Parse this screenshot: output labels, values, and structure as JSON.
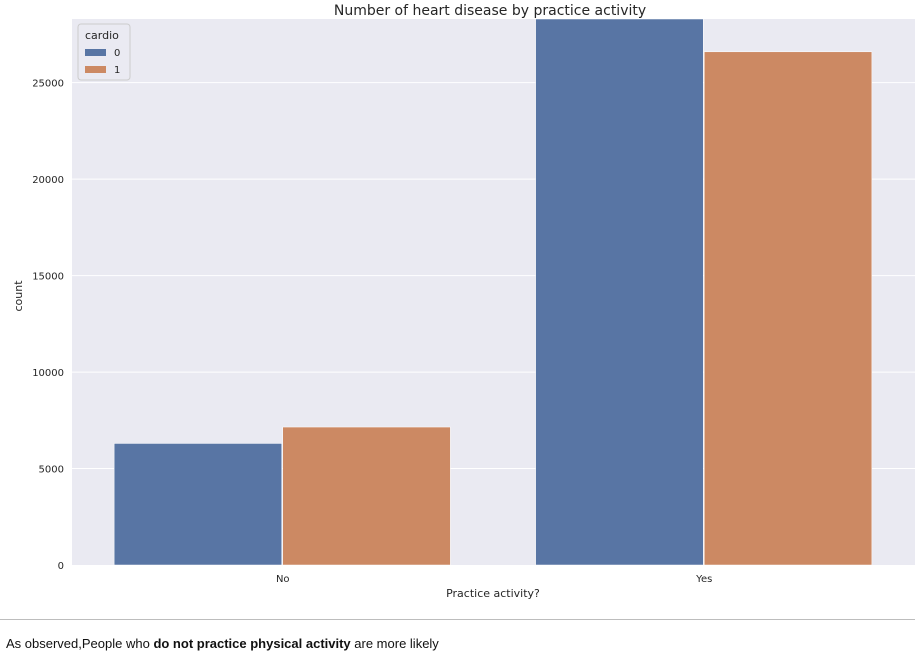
{
  "chart_data": {
    "type": "bar",
    "title": "Number of heart disease by practice activity",
    "xlabel": "Practice activity?",
    "ylabel": "count",
    "categories": [
      "No",
      "Yes"
    ],
    "series": [
      {
        "name": "0",
        "values": [
          6300,
          28300
        ],
        "color": "#5875a4"
      },
      {
        "name": "1",
        "values": [
          7150,
          26600
        ],
        "color": "#cc8963"
      }
    ],
    "ylim": [
      0,
      28300
    ],
    "yticks": [
      0,
      5000,
      10000,
      15000,
      20000,
      25000
    ],
    "ytick_labels": [
      "0",
      "5000",
      "10000",
      "15000",
      "20000",
      "25000"
    ],
    "legend": {
      "title": "cardio",
      "position": "top-left"
    },
    "grid": true,
    "background": "#eaeaf2"
  },
  "note": {
    "prefix": "As observed,People who ",
    "bold": "do not practice physical activity",
    "suffix": " are more likely"
  }
}
